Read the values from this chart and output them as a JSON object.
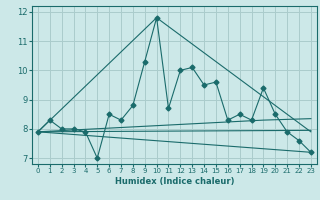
{
  "title": "",
  "xlabel": "Humidex (Indice chaleur)",
  "bg_color": "#cce8e8",
  "grid_color": "#aacccc",
  "line_color": "#1a6b6b",
  "xlim": [
    -0.5,
    23.5
  ],
  "ylim": [
    6.8,
    12.2
  ],
  "yticks": [
    7,
    8,
    9,
    10,
    11,
    12
  ],
  "xticks": [
    0,
    1,
    2,
    3,
    4,
    5,
    6,
    7,
    8,
    9,
    10,
    11,
    12,
    13,
    14,
    15,
    16,
    17,
    18,
    19,
    20,
    21,
    22,
    23
  ],
  "series": {
    "main": {
      "x": [
        0,
        1,
        2,
        3,
        4,
        5,
        6,
        7,
        8,
        9,
        10,
        11,
        12,
        13,
        14,
        15,
        16,
        17,
        18,
        19,
        20,
        21,
        22,
        23
      ],
      "y": [
        7.9,
        8.3,
        8.0,
        8.0,
        7.9,
        7.0,
        8.5,
        8.3,
        8.8,
        10.3,
        11.8,
        8.7,
        10.0,
        10.1,
        9.5,
        9.6,
        8.3,
        8.5,
        8.3,
        9.4,
        8.5,
        7.9,
        7.6,
        7.2
      ],
      "marker": "D",
      "markersize": 2.5
    },
    "upper_envelope": {
      "x": [
        0,
        10,
        23
      ],
      "y": [
        7.9,
        11.8,
        7.9
      ],
      "marker": null
    },
    "lower_decline": {
      "x": [
        0,
        23
      ],
      "y": [
        7.9,
        7.2
      ],
      "marker": null
    },
    "mid_rise": {
      "x": [
        0,
        19,
        23
      ],
      "y": [
        7.9,
        8.3,
        8.35
      ],
      "marker": null
    },
    "flat_line": {
      "x": [
        0,
        23
      ],
      "y": [
        7.9,
        7.95
      ],
      "marker": null
    }
  }
}
